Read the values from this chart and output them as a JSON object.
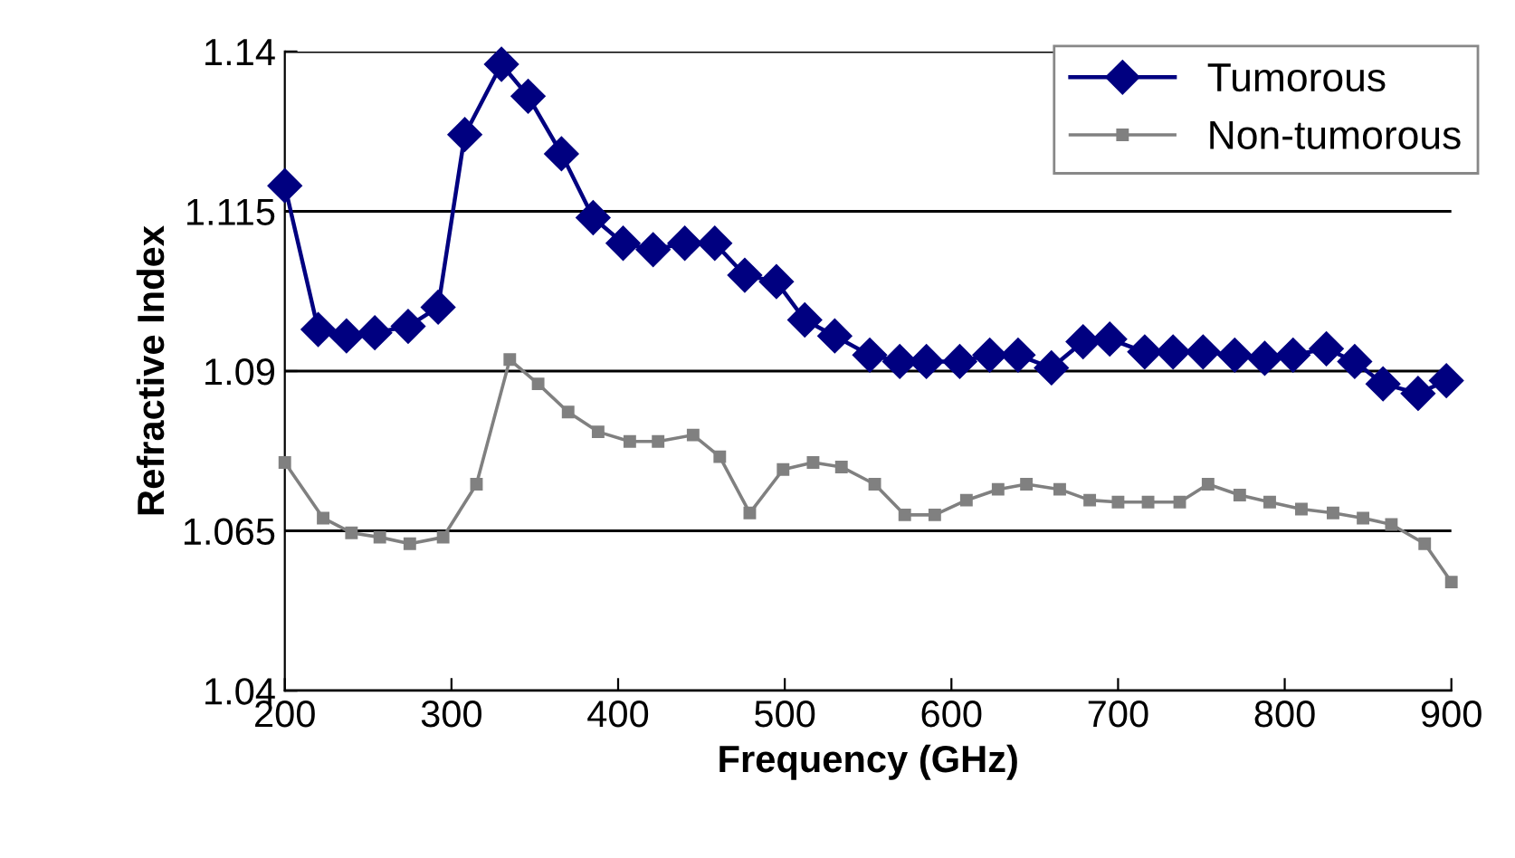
{
  "chart_data": {
    "type": "line",
    "xlabel": "Frequency (GHz)",
    "ylabel": "Refractive Index",
    "xlim": [
      200,
      900
    ],
    "xticks": [
      200,
      300,
      400,
      500,
      600,
      700,
      800,
      900
    ],
    "ylim": [
      1.04,
      1.14
    ],
    "yticks": [
      {
        "value": 1.04,
        "label": "1.04"
      },
      {
        "value": 1.065,
        "label": "1.065"
      },
      {
        "value": 1.09,
        "label": "1.09"
      },
      {
        "value": 1.115,
        "label": "1.115"
      },
      {
        "value": 1.14,
        "label": "1.14"
      }
    ],
    "grid": "y",
    "legend": "top right",
    "line_style": "solid",
    "series": [
      {
        "name": "Tumorous",
        "color": "#000080",
        "marker": "diamond",
        "x": [
          200,
          220,
          237,
          254,
          274,
          292,
          308,
          330,
          346,
          366,
          385,
          403,
          421,
          440,
          458,
          476,
          495,
          512,
          530,
          551,
          569,
          585,
          605,
          623,
          640,
          660,
          679,
          695,
          716,
          733,
          751,
          770,
          788,
          805,
          825,
          842,
          859,
          880,
          897
        ],
        "values": [
          1.119,
          1.0965,
          1.0955,
          1.096,
          1.097,
          1.1,
          1.127,
          1.138,
          1.133,
          1.124,
          1.114,
          1.11,
          1.109,
          1.11,
          1.11,
          1.105,
          1.104,
          1.098,
          1.0955,
          1.0925,
          1.0915,
          1.0915,
          1.0915,
          1.0925,
          1.0925,
          1.0905,
          1.0946,
          1.095,
          1.093,
          1.093,
          1.093,
          1.0925,
          1.092,
          1.0925,
          1.0935,
          1.0915,
          1.088,
          1.0865,
          1.0885
        ]
      },
      {
        "name": "Non-tumorous",
        "color": "#808080",
        "marker": "square",
        "x": [
          200,
          223,
          240,
          257,
          275,
          295,
          315,
          335,
          352,
          370,
          388,
          407,
          424,
          445,
          461,
          479,
          499,
          517,
          534,
          554,
          572,
          590,
          609,
          628,
          645,
          665,
          683,
          700,
          718,
          737,
          754,
          773,
          791,
          810,
          829,
          847,
          864,
          884,
          900
        ],
        "values": [
          1.0757,
          1.067,
          1.0647,
          1.064,
          1.063,
          1.064,
          1.0723,
          1.0918,
          1.088,
          1.0836,
          1.0805,
          1.079,
          1.079,
          1.08,
          1.0766,
          1.0678,
          1.0746,
          1.0757,
          1.075,
          1.0723,
          1.0675,
          1.0675,
          1.0698,
          1.0715,
          1.0723,
          1.0715,
          1.0698,
          1.0695,
          1.0695,
          1.0695,
          1.0723,
          1.0706,
          1.0695,
          1.0684,
          1.0678,
          1.067,
          1.066,
          1.063,
          1.057
        ]
      }
    ]
  }
}
